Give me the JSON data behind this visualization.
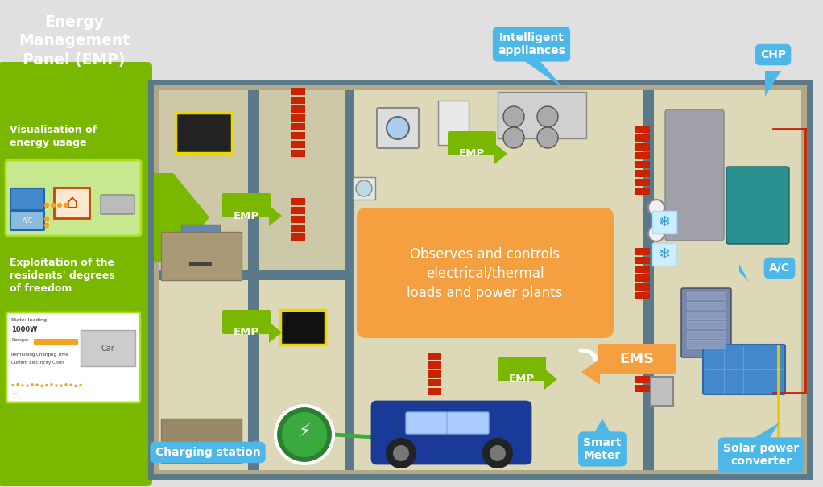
{
  "bg_color": "#e0e0e0",
  "green": "#7ab800",
  "blue": "#4db8e8",
  "orange": "#f5a040",
  "wall_color": "#5a7a8a",
  "floor_color": "#ddd8b8",
  "white": "#ffffff",
  "red": "#cc2200",
  "yellow": "#e8d800",
  "teal": "#2a9090",
  "panel_title": "Energy\nManagement\nPanel (EMP)",
  "vis_text": "Visualisation of\nenergy usage",
  "exploit_text": "Exploitation of the\nresidents' degrees\nof freedom",
  "observes_text": "Observes and controls\nelectrical/thermal\nloads and power plants",
  "ems_text": "EMS",
  "emp_text": "EMP",
  "ia_text": "Intelligent\nappliances",
  "chp_text": "CHP",
  "ac_text": "A/C",
  "sm_text": "Smart\nMeter",
  "sp_text": "Solar power\nconverter",
  "cs_text": "Charging station"
}
